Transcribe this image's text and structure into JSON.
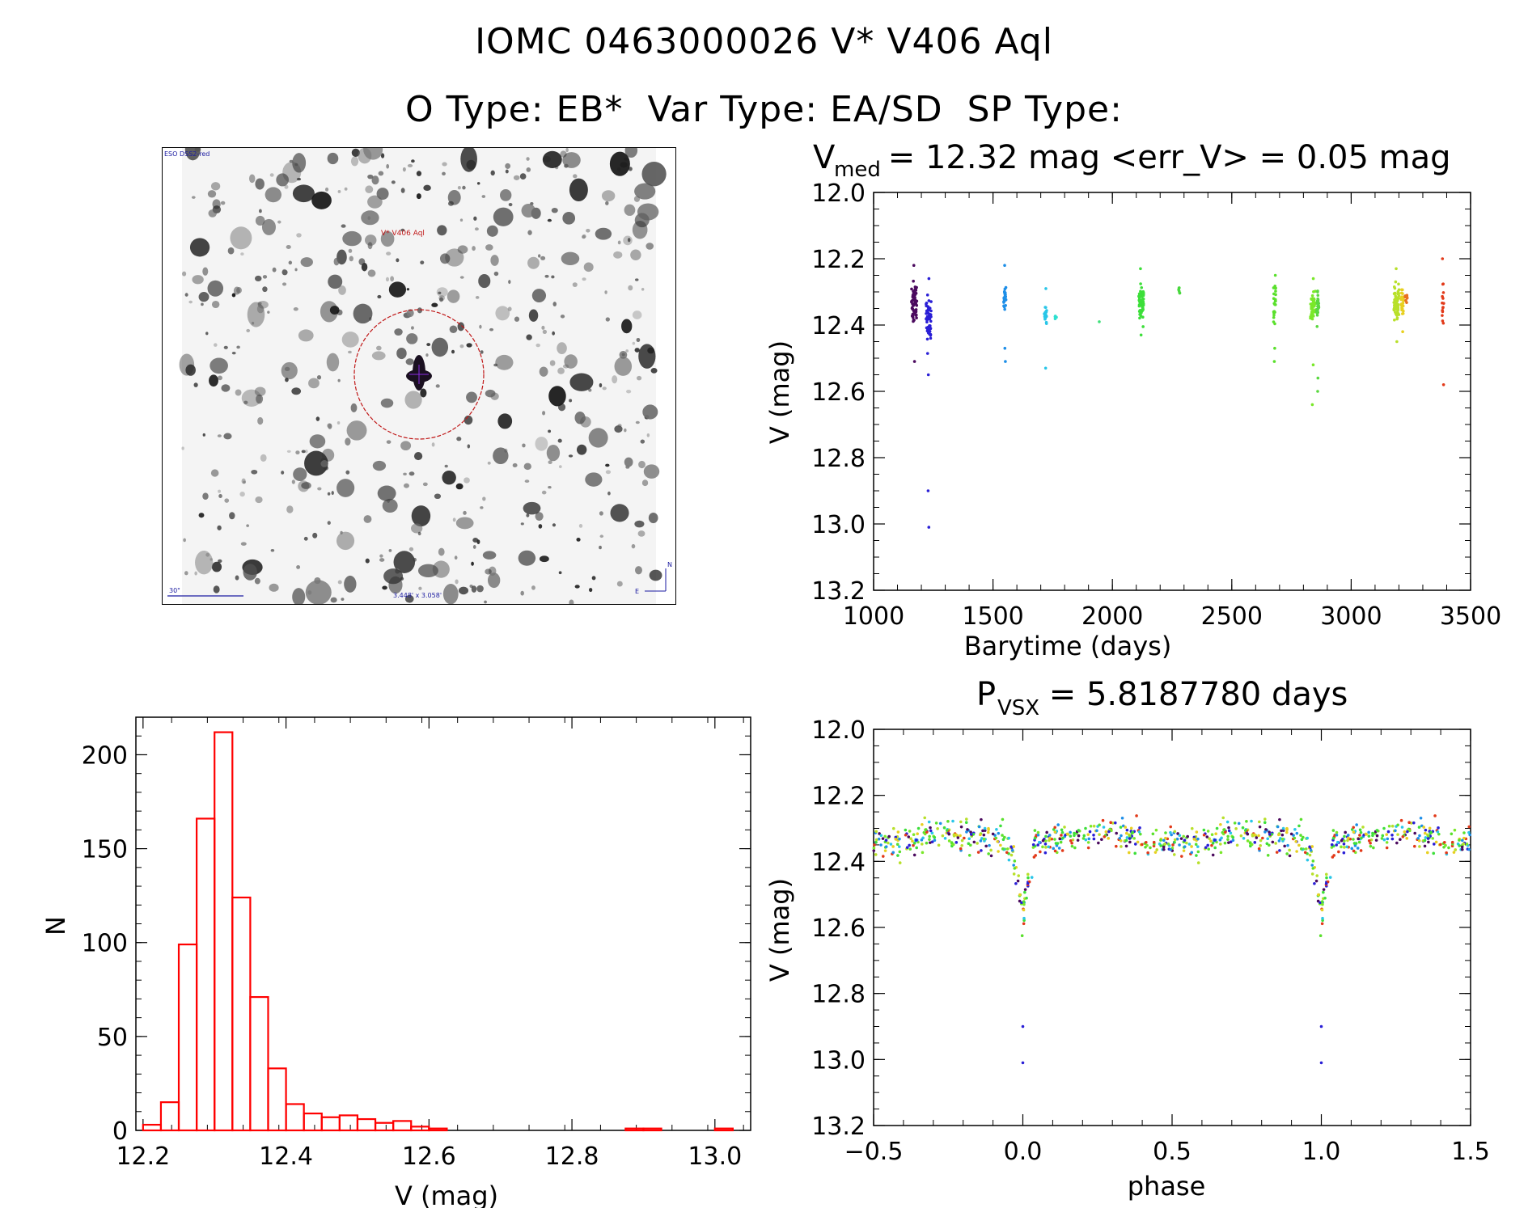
{
  "header": {
    "line1": "IOMC 0463000026   V* V406 Aql",
    "line2": "O Type: EB*  Var Type: EA/SD  SP Type:"
  },
  "finder_chart": {
    "survey_label": "ESO DSS2-red",
    "target_label": "V* V406 Aql",
    "scale_label": "30\"",
    "field_label": "3.448' x 3.058'",
    "compass_n": "N",
    "compass_e": "E"
  },
  "chart_data": [
    {
      "id": "lightcurve",
      "type": "scatter",
      "title_main": "V",
      "title_sub": "med",
      "title_rest": " = 12.32 mag <err_V> = 0.05 mag",
      "xlabel": "Barytime (days)",
      "ylabel": "V (mag)",
      "xlim": [
        1000,
        3500
      ],
      "ylim": [
        12.0,
        13.2
      ],
      "y_inverted": true,
      "xticks": [
        1000,
        1500,
        2000,
        2500,
        3000,
        3500
      ],
      "xtick_labels": [
        "1000",
        "1500",
        "2000",
        "2500",
        "3000",
        "3500"
      ],
      "yticks": [
        12.0,
        12.2,
        12.4,
        12.6,
        12.8,
        13.0,
        13.2
      ],
      "ytick_labels": [
        "12.0",
        "12.2",
        "12.4",
        "12.6",
        "12.8",
        "13.0",
        "13.2"
      ],
      "color_scale": "time (purple → blue → cyan → green → yellow → red)",
      "groups": [
        {
          "t": 1170,
          "center": 12.34,
          "spread": 0.06,
          "n": 60,
          "color": "#4b0a5e",
          "outliers": [
            12.22,
            12.51
          ]
        },
        {
          "t": 1230,
          "center": 12.38,
          "spread": 0.08,
          "n": 55,
          "color": "#2a1fd6",
          "outliers": [
            12.26,
            12.55,
            12.9,
            13.01
          ]
        },
        {
          "t": 1550,
          "center": 12.32,
          "spread": 0.03,
          "n": 25,
          "color": "#1e8fe8",
          "outliers": [
            12.22,
            12.47,
            12.51
          ]
        },
        {
          "t": 1720,
          "center": 12.37,
          "spread": 0.03,
          "n": 18,
          "color": "#29c6e8",
          "outliers": [
            12.29,
            12.53
          ]
        },
        {
          "t": 1765,
          "center": 12.38,
          "spread": 0.01,
          "n": 4,
          "color": "#2fe0d0",
          "outliers": []
        },
        {
          "t": 1950,
          "center": 12.39,
          "spread": 0.0,
          "n": 1,
          "color": "#3fe07a",
          "outliers": []
        },
        {
          "t": 2120,
          "center": 12.33,
          "spread": 0.05,
          "n": 70,
          "color": "#3ddf3a",
          "outliers": [
            12.23,
            12.43
          ]
        },
        {
          "t": 2280,
          "center": 12.3,
          "spread": 0.015,
          "n": 6,
          "color": "#48d83d",
          "outliers": []
        },
        {
          "t": 2680,
          "center": 12.34,
          "spread": 0.05,
          "n": 25,
          "color": "#5ae02c",
          "outliers": [
            12.25,
            12.47,
            12.51
          ]
        },
        {
          "t": 2840,
          "center": 12.34,
          "spread": 0.04,
          "n": 50,
          "color": "#7ae82a",
          "outliers": [
            12.26,
            12.52,
            12.64
          ]
        },
        {
          "t": 2860,
          "center": 12.34,
          "spread": 0.04,
          "n": 25,
          "color": "#5ad840",
          "outliers": [
            12.6,
            12.56
          ]
        },
        {
          "t": 3190,
          "center": 12.33,
          "spread": 0.05,
          "n": 55,
          "color": "#b8e02a",
          "outliers": [
            12.23,
            12.45
          ]
        },
        {
          "t": 3215,
          "center": 12.33,
          "spread": 0.04,
          "n": 25,
          "color": "#e8d020",
          "outliers": [
            12.42
          ]
        },
        {
          "t": 3230,
          "center": 12.31,
          "spread": 0.02,
          "n": 10,
          "color": "#e87020",
          "outliers": []
        },
        {
          "t": 3385,
          "center": 12.35,
          "spread": 0.08,
          "n": 14,
          "color": "#e23a1a",
          "outliers": [
            12.2,
            12.58
          ]
        }
      ]
    },
    {
      "id": "histogram",
      "type": "bar",
      "xlabel": "V (mag)",
      "ylabel": "N",
      "xlim": [
        12.19,
        13.05
      ],
      "ylim": [
        0,
        220
      ],
      "bar_color": "#ff0000",
      "xticks": [
        12.2,
        12.4,
        12.6,
        12.8,
        13.0
      ],
      "xtick_labels": [
        "12.2",
        "12.4",
        "12.6",
        "12.8",
        "13.0"
      ],
      "yticks": [
        0,
        50,
        100,
        150,
        200
      ],
      "ytick_labels": [
        "0",
        "50",
        "100",
        "150",
        "200"
      ],
      "bin_width": 0.025,
      "bin_starts": [
        12.2,
        12.225,
        12.25,
        12.275,
        12.3,
        12.325,
        12.35,
        12.375,
        12.4,
        12.425,
        12.45,
        12.475,
        12.5,
        12.525,
        12.55,
        12.575,
        12.6,
        12.625,
        12.65,
        12.675,
        12.7,
        12.725,
        12.75,
        12.775,
        12.8,
        12.825,
        12.85,
        12.875,
        12.9,
        12.925,
        12.95,
        12.975,
        13.0
      ],
      "counts": [
        3,
        15,
        99,
        166,
        212,
        124,
        71,
        33,
        14,
        9,
        7,
        8,
        6,
        4,
        5,
        2,
        1,
        0,
        0,
        0,
        0,
        0,
        0,
        0,
        0,
        0,
        0,
        1,
        1,
        0,
        0,
        0,
        1
      ]
    },
    {
      "id": "phased",
      "type": "scatter",
      "title_main": "P",
      "title_sub": "VSX",
      "title_rest": " = 5.8187780 days",
      "xlabel": "phase",
      "ylabel": "V (mag)",
      "xlim": [
        -0.5,
        1.5
      ],
      "ylim": [
        12.0,
        13.2
      ],
      "y_inverted": true,
      "xticks": [
        -0.5,
        0.0,
        0.5,
        1.0,
        1.5
      ],
      "xtick_labels": [
        "−0.5",
        "0.0",
        "0.5",
        "1.0",
        "1.5"
      ],
      "yticks": [
        12.0,
        12.2,
        12.4,
        12.6,
        12.8,
        13.0,
        13.2
      ],
      "ytick_labels": [
        "12.0",
        "12.2",
        "12.4",
        "12.6",
        "12.8",
        "13.0",
        "13.2"
      ],
      "period_days": 5.818778,
      "palette": [
        "#4b0a5e",
        "#2a1fd6",
        "#1e8fe8",
        "#29c6e8",
        "#3ddf3a",
        "#5ae02c",
        "#7ae82a",
        "#b8e02a",
        "#e8d020",
        "#e23a1a"
      ],
      "baseline_mag": 12.33,
      "primary_eclipse": {
        "phase": 0.0,
        "min_mag": 12.64
      },
      "deep_points": [
        {
          "phase": 0.0,
          "mag": 12.9
        },
        {
          "phase": 0.0,
          "mag": 13.01
        }
      ]
    }
  ]
}
